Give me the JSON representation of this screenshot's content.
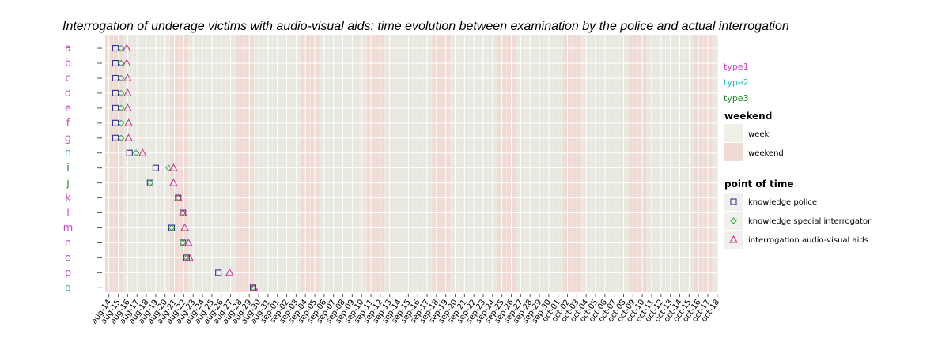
{
  "chart_data": {
    "type": "scatter",
    "title": "Interrogation of underage victims with audio-visual aids: time evolution between examination by the police and actual interrogation",
    "x_ticks": [
      "aug-14",
      "aug-15",
      "aug-16",
      "aug-17",
      "aug-18",
      "aug-19",
      "aug-20",
      "aug-21",
      "aug-22",
      "aug-23",
      "aug-24",
      "aug-25",
      "aug-26",
      "aug-27",
      "aug-28",
      "aug-29",
      "aug-30",
      "aug-31",
      "sep-01",
      "sep-02",
      "sep-03",
      "sep-04",
      "sep-05",
      "sep-06",
      "sep-07",
      "sep-08",
      "sep-09",
      "sep-10",
      "sep-11",
      "sep-12",
      "sep-13",
      "sep-14",
      "sep-15",
      "sep-16",
      "sep-17",
      "sep-18",
      "sep-19",
      "sep-20",
      "sep-21",
      "sep-22",
      "sep-23",
      "sep-24",
      "sep-25",
      "sep-26",
      "sep-27",
      "sep-28",
      "sep-29",
      "sep-30",
      "oct-01",
      "oct-02",
      "oct-03",
      "oct-04",
      "oct-05",
      "oct-06",
      "oct-07",
      "oct-08",
      "oct-09",
      "oct-10",
      "oct-11",
      "oct-12",
      "oct-13",
      "oct-14",
      "oct-15",
      "oct-16",
      "oct-17",
      "oct-18"
    ],
    "categories": [
      "a",
      "b",
      "c",
      "d",
      "e",
      "f",
      "g",
      "h",
      "i",
      "j",
      "k",
      "l",
      "m",
      "n",
      "o",
      "p",
      "q"
    ],
    "category_types": [
      "type1",
      "type1",
      "type1",
      "type1",
      "type1",
      "type1",
      "type1",
      "type2",
      "type3",
      "type3",
      "type1",
      "type1",
      "type1",
      "type1",
      "type1",
      "type1",
      "type2"
    ],
    "type_colors": {
      "type1": "#cc44cc",
      "type2": "#22bbbb",
      "type3": "#228822"
    },
    "weekend_ranges": [
      [
        "aug-14",
        "aug-15"
      ],
      [
        "aug-21",
        "aug-22"
      ],
      [
        "aug-28",
        "aug-29"
      ],
      [
        "sep-04",
        "sep-05"
      ],
      [
        "sep-11",
        "sep-12"
      ],
      [
        "sep-18",
        "sep-19"
      ],
      [
        "sep-25",
        "sep-26"
      ],
      [
        "oct-02",
        "oct-03"
      ],
      [
        "oct-09",
        "oct-10"
      ],
      [
        "oct-16",
        "oct-17"
      ]
    ],
    "series": [
      {
        "name": "knowledge police",
        "marker": "square",
        "color": "#333399",
        "values": [
          0.7,
          0.7,
          0.7,
          0.7,
          0.7,
          0.7,
          0.7,
          2.2,
          5.0,
          4.4,
          7.4,
          7.9,
          6.7,
          7.9,
          8.3,
          11.7,
          15.4
        ]
      },
      {
        "name": "knowledge special interrogator",
        "marker": "diamond",
        "color": "#33aa33",
        "values": [
          1.3,
          1.3,
          1.3,
          1.3,
          1.3,
          1.3,
          1.3,
          2.9,
          6.4,
          4.4,
          7.4,
          7.9,
          6.7,
          7.9,
          8.3,
          null,
          15.4
        ]
      },
      {
        "name": "interrogation audio-visual aids",
        "marker": "triangle",
        "color": "#cc3399",
        "values": [
          1.9,
          1.9,
          2.0,
          2.0,
          2.0,
          2.1,
          2.1,
          3.6,
          6.9,
          6.9,
          7.4,
          7.9,
          8.1,
          8.5,
          8.6,
          12.9,
          15.5
        ]
      }
    ],
    "grid": true
  },
  "legends": {
    "types": [
      "type1",
      "type2",
      "type3"
    ],
    "weekend": {
      "title": "weekend",
      "items": [
        "week",
        "weekend"
      ],
      "colors": [
        "#f0f0e8",
        "#efdbd4"
      ]
    },
    "point_of_time": {
      "title": "point of time",
      "items": [
        "knowledge police",
        "knowledge special interrogator",
        "interrogation audio-visual aids"
      ]
    }
  }
}
